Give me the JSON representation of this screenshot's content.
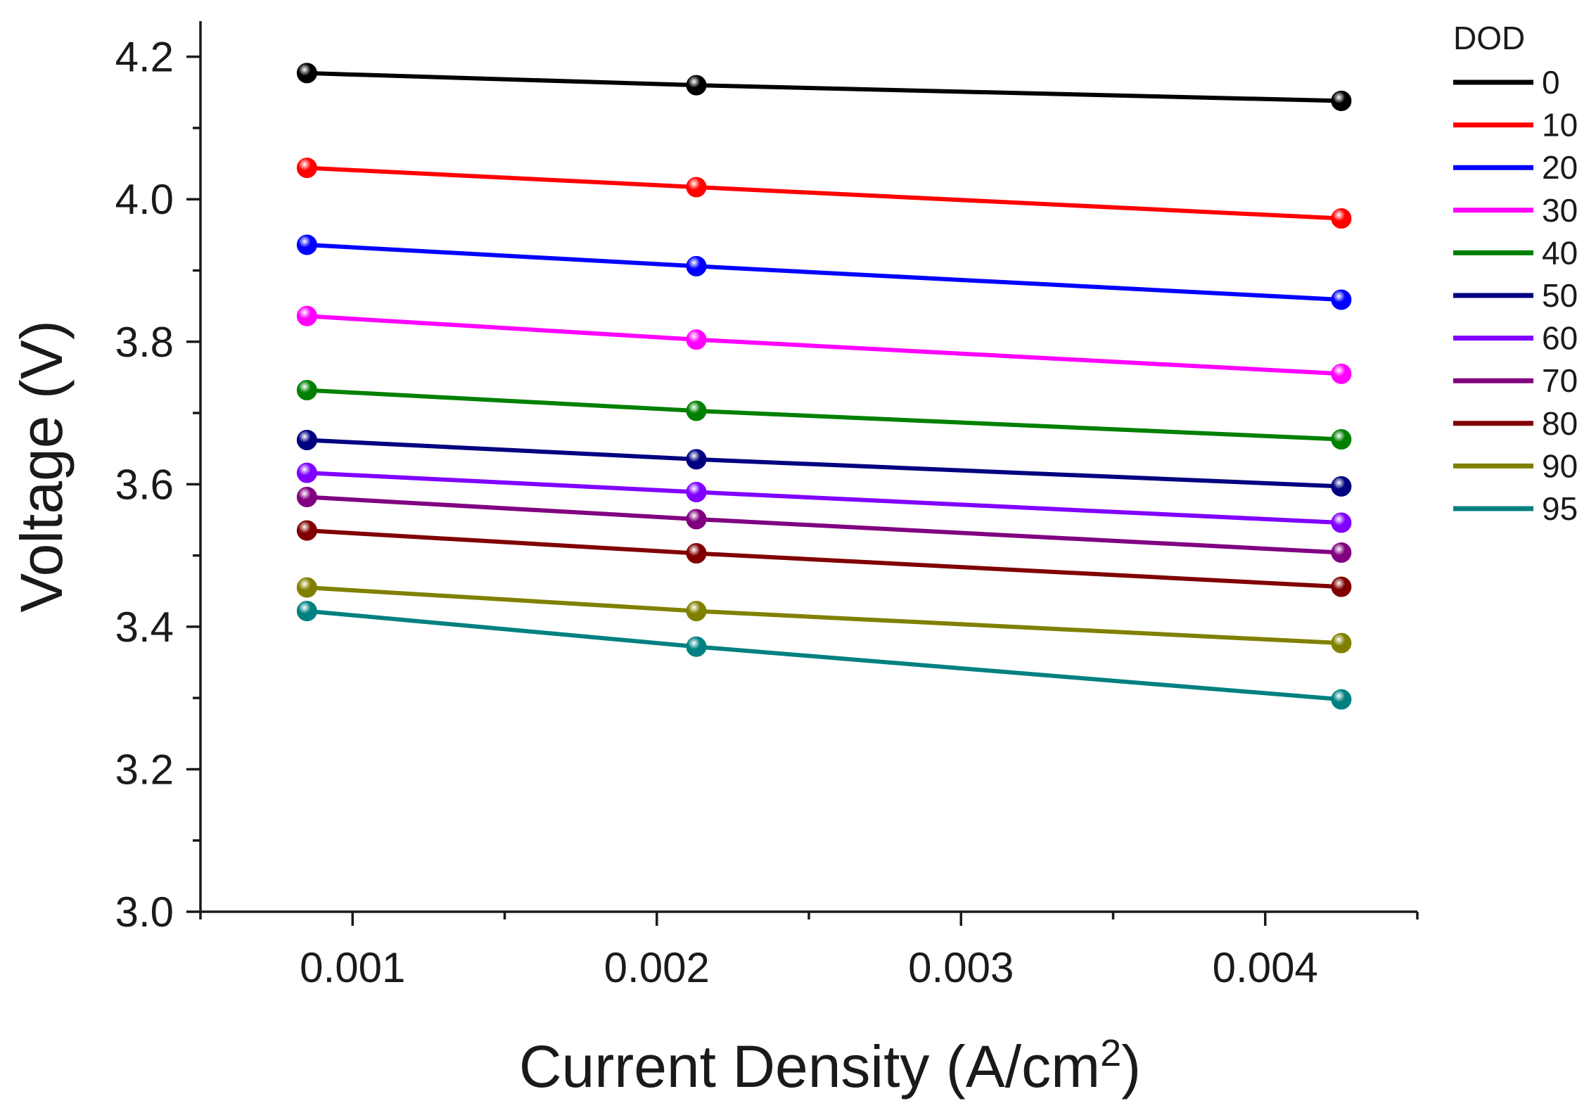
{
  "chart_data": {
    "type": "line",
    "title": "",
    "xlabel": "Current Density (A/cm",
    "xlabel_superscript": "2",
    "xlabel_suffix": ")",
    "ylabel": "Voltage (V)",
    "xlim": [
      0.0005,
      0.0045
    ],
    "ylim": [
      3.0,
      4.25
    ],
    "x_ticks": [
      0.001,
      0.002,
      0.003,
      0.004
    ],
    "x_tick_labels": [
      "0.001",
      "0.002",
      "0.003",
      "0.004"
    ],
    "x_minor_ticks": [
      0.0005,
      0.0015,
      0.0025,
      0.0035,
      0.0045
    ],
    "y_ticks": [
      3.0,
      3.2,
      3.4,
      3.6,
      3.8,
      4.0,
      4.2
    ],
    "y_tick_labels": [
      "3.0",
      "3.2",
      "3.4",
      "3.6",
      "3.8",
      "4.0",
      "4.2"
    ],
    "y_minor_ticks": [
      3.1,
      3.3,
      3.5,
      3.7,
      3.9,
      4.1
    ],
    "grid": false,
    "legend_title": "DOD",
    "legend_position": "outside-right",
    "x": [
      0.00085,
      0.00213,
      0.00425
    ],
    "series": [
      {
        "name": "0",
        "color": "#000000",
        "values": [
          4.177,
          4.16,
          4.138
        ]
      },
      {
        "name": "10",
        "color": "#ff0000",
        "values": [
          4.044,
          4.017,
          3.973
        ]
      },
      {
        "name": "20",
        "color": "#0000ff",
        "values": [
          3.936,
          3.906,
          3.859
        ]
      },
      {
        "name": "30",
        "color": "#ff00ff",
        "values": [
          3.836,
          3.803,
          3.755
        ]
      },
      {
        "name": "40",
        "color": "#008000",
        "values": [
          3.732,
          3.703,
          3.663
        ]
      },
      {
        "name": "50",
        "color": "#000080",
        "values": [
          3.662,
          3.635,
          3.597
        ]
      },
      {
        "name": "60",
        "color": "#8000ff",
        "values": [
          3.616,
          3.589,
          3.546
        ]
      },
      {
        "name": "70",
        "color": "#800080",
        "values": [
          3.582,
          3.551,
          3.504
        ]
      },
      {
        "name": "80",
        "color": "#800000",
        "values": [
          3.535,
          3.503,
          3.456
        ]
      },
      {
        "name": "90",
        "color": "#808000",
        "values": [
          3.455,
          3.422,
          3.377
        ]
      },
      {
        "name": "95",
        "color": "#008080",
        "values": [
          3.422,
          3.372,
          3.298
        ]
      }
    ]
  }
}
